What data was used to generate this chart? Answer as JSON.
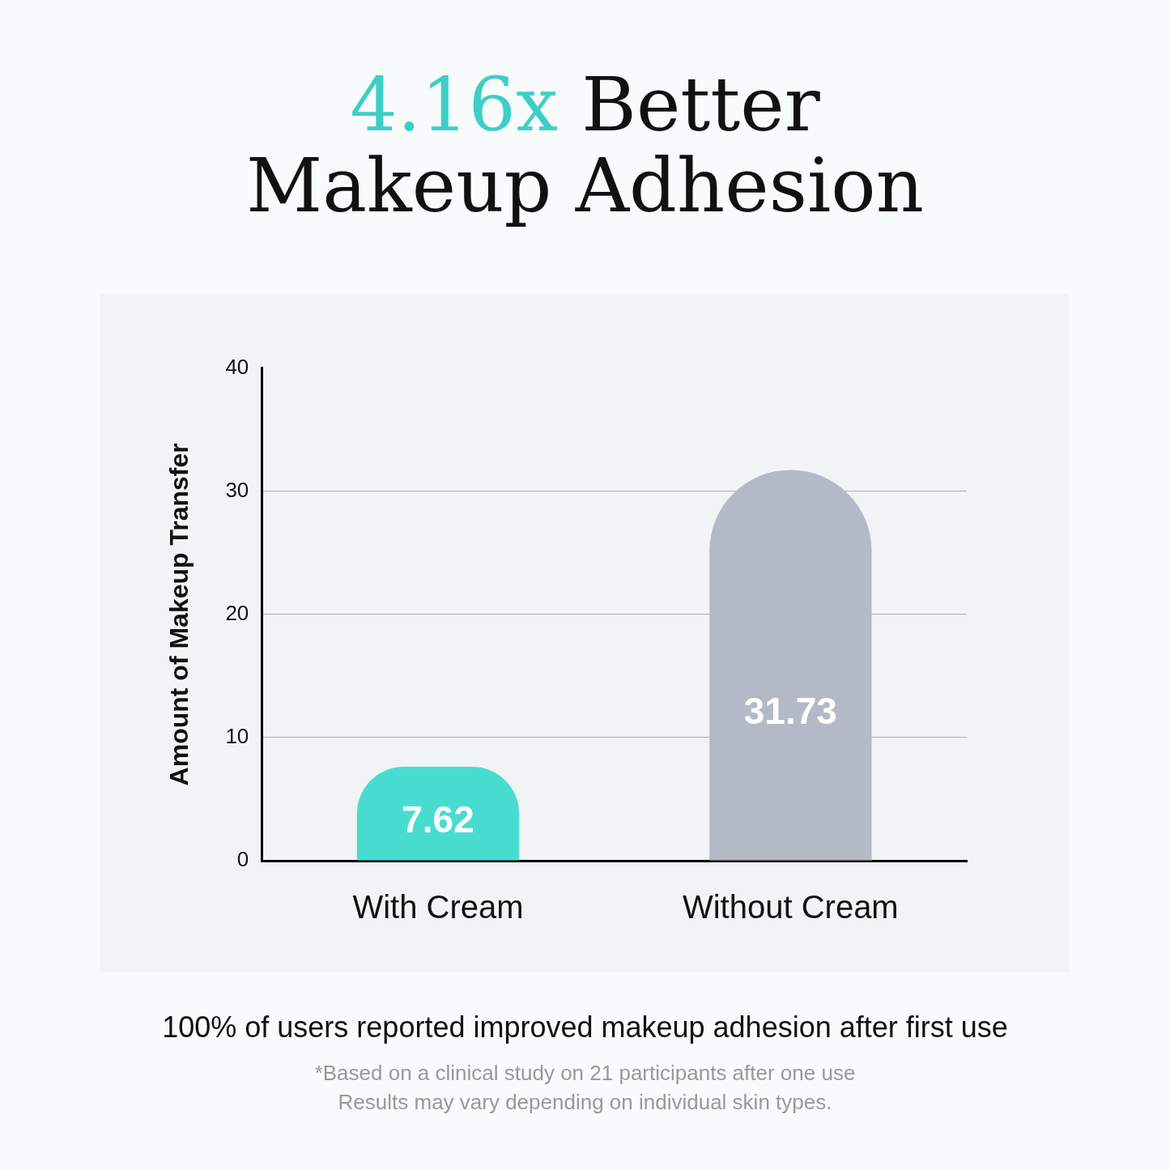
{
  "chart_data": {
    "type": "bar",
    "title": "4.16x Better Makeup Adhesion",
    "ylabel": "Amount of Makeup Transfer",
    "categories": [
      "With Cream",
      "Without Cream"
    ],
    "values": [
      7.62,
      31.73
    ],
    "colors": [
      "#48dcd0",
      "#b3b9c6"
    ],
    "ylim": [
      0,
      40
    ],
    "yticks": [
      0,
      10,
      20,
      30,
      40
    ],
    "grid": "y",
    "legend": false,
    "data_labels": true,
    "annotations": [
      "100% of users reported improved makeup adhesion after first use",
      "*Based on a clinical study on 21 participants after one use",
      "Results may vary depending on individual skin types."
    ]
  }
}
